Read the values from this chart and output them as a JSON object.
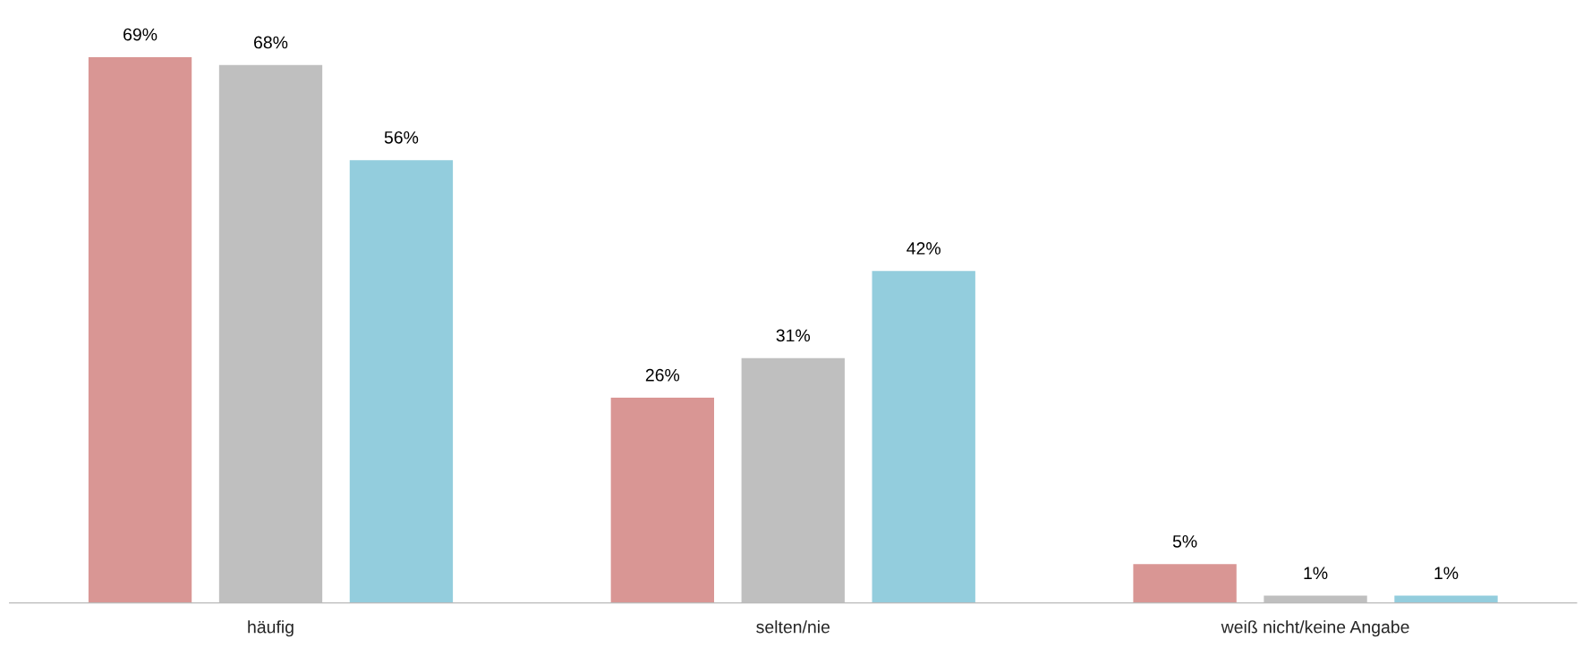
{
  "chart_data": {
    "type": "bar",
    "categories": [
      "häufig",
      "selten/nie",
      "weiß nicht/keine Angabe"
    ],
    "series": [
      {
        "color": "#d99694",
        "values": [
          69,
          26,
          5
        ],
        "value_labels": [
          "69%",
          "26%",
          "5%"
        ]
      },
      {
        "color": "#bfbfbf",
        "values": [
          68,
          31,
          1
        ],
        "value_labels": [
          "68%",
          "31%",
          "1%"
        ]
      },
      {
        "color": "#93cddd",
        "values": [
          56,
          42,
          1
        ],
        "value_labels": [
          "56%",
          "42%",
          "1%"
        ]
      }
    ],
    "grid": false
  }
}
